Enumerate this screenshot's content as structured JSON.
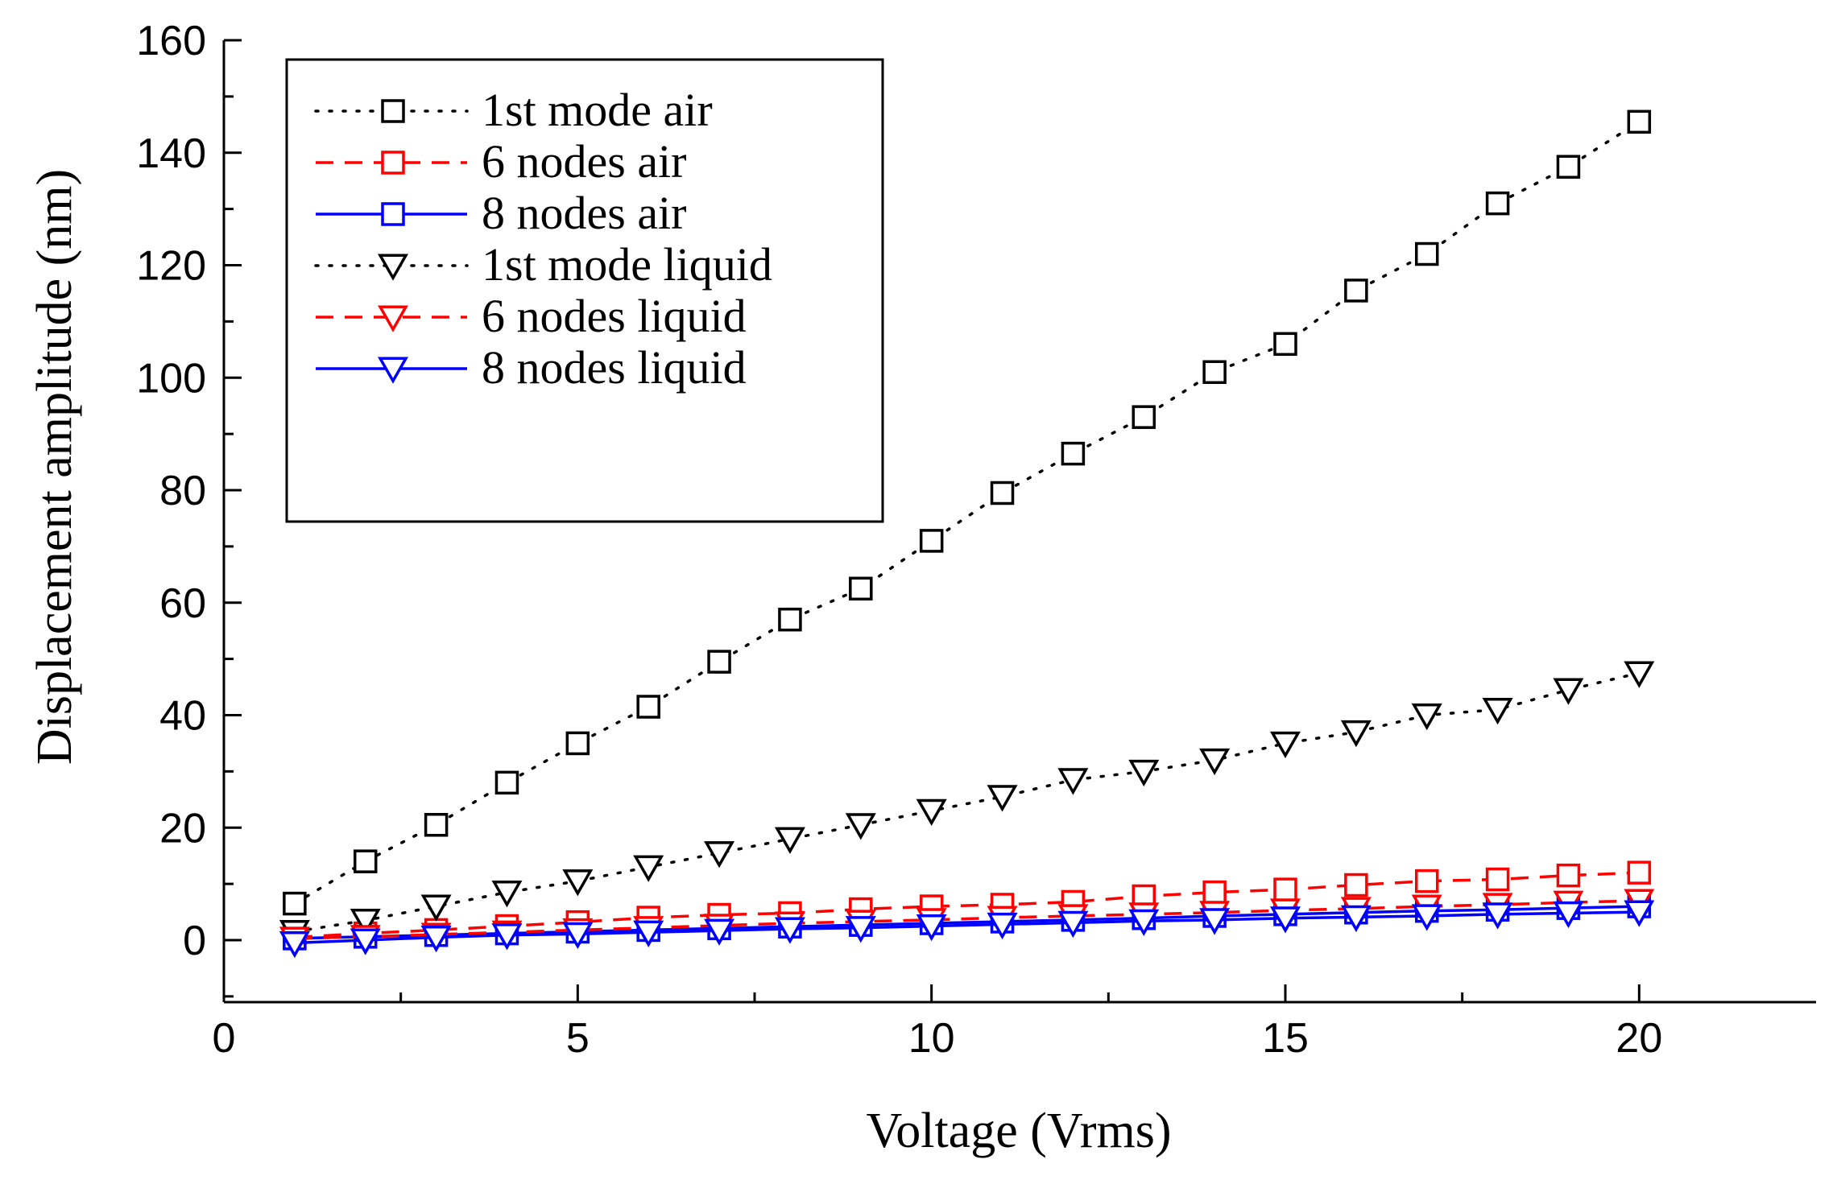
{
  "chart_data": {
    "type": "line",
    "title": "",
    "xlabel": "Voltage (Vrms)",
    "ylabel": "Displacement amplitude (nm)",
    "xlim": [
      0,
      22.5
    ],
    "ylim": [
      -10,
      160
    ],
    "xticks": [
      0,
      5,
      10,
      15,
      20
    ],
    "yticks": [
      0,
      20,
      40,
      60,
      80,
      100,
      120,
      140,
      160
    ],
    "xtick_labels": [
      "0",
      "5",
      "10",
      "15",
      "20"
    ],
    "ytick_labels": [
      "0",
      "20",
      "40",
      "60",
      "80",
      "100",
      "120",
      "140",
      "160"
    ],
    "legend_position": "top-left",
    "x": [
      1,
      2,
      3,
      4,
      5,
      6,
      7,
      8,
      9,
      10,
      11,
      12,
      13,
      14,
      15,
      16,
      17,
      18,
      19,
      20
    ],
    "series": [
      {
        "name": "1st mode air",
        "color": "#000000",
        "dash": "dotted",
        "marker": "square",
        "values": [
          6.5,
          14,
          20.5,
          28,
          35,
          41.5,
          49.5,
          57,
          62.5,
          71,
          79.5,
          86.5,
          93,
          101,
          106,
          115.5,
          122,
          131,
          137.5,
          145.5
        ]
      },
      {
        "name": "6 nodes air",
        "color": "#ff0000",
        "dash": "dashed",
        "marker": "square",
        "values": [
          0.5,
          1.2,
          1.8,
          2.5,
          3.2,
          4,
          4.5,
          4.8,
          5.5,
          6,
          6.3,
          6.8,
          7.8,
          8.5,
          9,
          9.8,
          10.5,
          10.8,
          11.5,
          12
        ]
      },
      {
        "name": "8 nodes air",
        "color": "#0000ff",
        "dash": "solid",
        "marker": "square",
        "values": [
          0.3,
          0.6,
          0.9,
          1.2,
          1.5,
          1.8,
          2.1,
          2.4,
          2.7,
          3,
          3.3,
          3.6,
          3.9,
          4.3,
          4.6,
          4.9,
          5.2,
          5.4,
          5.7,
          6
        ]
      },
      {
        "name": "1st mode liquid",
        "color": "#000000",
        "dash": "dotted",
        "marker": "triangle-down",
        "values": [
          1.5,
          3.5,
          6,
          8.5,
          10.5,
          13,
          15.5,
          18,
          20.5,
          23,
          25.5,
          28.5,
          30,
          32,
          35,
          37,
          40,
          41,
          44.5,
          47.5
        ]
      },
      {
        "name": "6 nodes liquid",
        "color": "#ff0000",
        "dash": "dashed",
        "marker": "triangle-down",
        "values": [
          0.3,
          0.6,
          1,
          1.4,
          1.8,
          2.2,
          2.6,
          3,
          3.3,
          3.6,
          4,
          4.3,
          4.6,
          4.9,
          5.3,
          5.6,
          6,
          6.3,
          6.7,
          7
        ]
      },
      {
        "name": "8 nodes liquid",
        "color": "#0000ff",
        "dash": "solid",
        "marker": "triangle-down",
        "values": [
          -0.5,
          0,
          0.5,
          0.9,
          1.1,
          1.4,
          1.7,
          2,
          2.2,
          2.5,
          2.8,
          3.1,
          3.4,
          3.6,
          3.9,
          4.1,
          4.3,
          4.6,
          4.8,
          5
        ]
      }
    ]
  }
}
